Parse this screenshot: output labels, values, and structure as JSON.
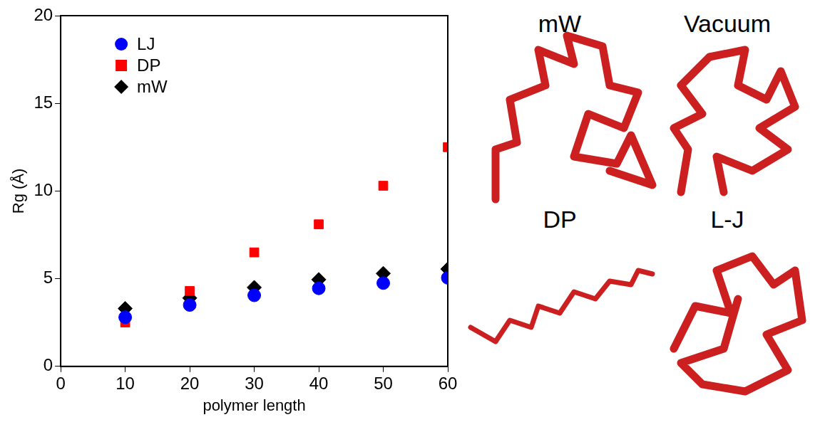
{
  "chart_data": {
    "type": "scatter",
    "x_label": "polymer length",
    "y_label": "Rg (Å)",
    "x": [
      10,
      20,
      30,
      40,
      50,
      60
    ],
    "series": [
      {
        "name": "LJ",
        "color": "#0000ff",
        "marker": "circle",
        "values": [
          2.8,
          3.5,
          4.05,
          4.45,
          4.75,
          5.05
        ]
      },
      {
        "name": "DP",
        "color": "#ff0000",
        "marker": "square",
        "values": [
          2.5,
          4.3,
          6.5,
          8.1,
          10.3,
          12.5
        ]
      },
      {
        "name": "mW",
        "color": "#000000",
        "marker": "diamond",
        "values": [
          3.3,
          3.9,
          4.5,
          4.95,
          5.3,
          5.55
        ]
      }
    ],
    "xlim": [
      0,
      60
    ],
    "xticks": [
      0,
      10,
      20,
      30,
      40,
      50,
      60
    ],
    "ylim": [
      0,
      20
    ],
    "yticks": [
      0,
      5,
      10,
      15,
      20
    ],
    "grid": false,
    "legend": "upper left"
  },
  "images": [
    "mW",
    "Vacuum",
    "DP",
    "L-J"
  ]
}
